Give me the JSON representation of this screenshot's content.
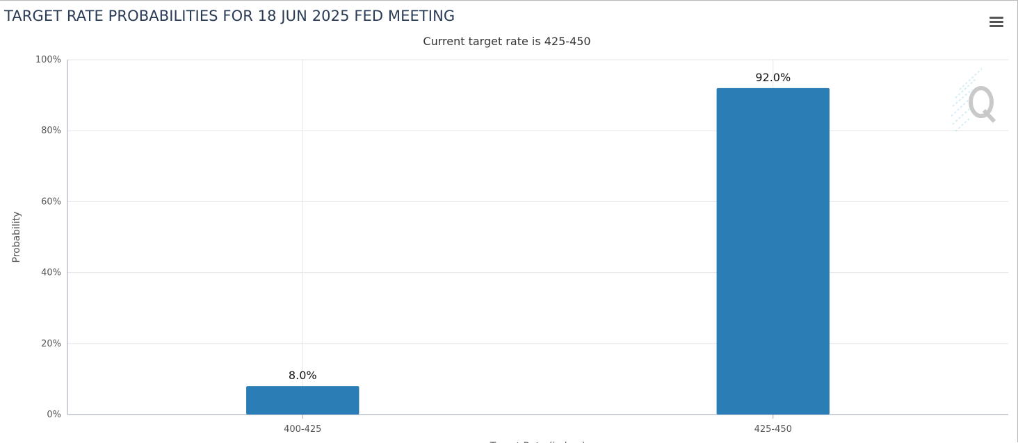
{
  "title": "TARGET RATE PROBABILITIES FOR 18 JUN 2025 FED MEETING",
  "subtitle": "Current target rate is 425-450",
  "menu_icon": "hamburger-menu-icon",
  "watermark_icon": "q-logo-icon",
  "colors": {
    "bar": "#2a7db5",
    "grid": "#e6e6e6",
    "axis": "#9aa3b0",
    "title": "#2a3b55"
  },
  "chart_data": {
    "type": "bar",
    "title": "TARGET RATE PROBABILITIES FOR 18 JUN 2025 FED MEETING",
    "subtitle": "Current target rate is 425-450",
    "categories": [
      "400-425",
      "425-450"
    ],
    "values": [
      8.0,
      92.0
    ],
    "data_labels": [
      "8.0%",
      "92.0%"
    ],
    "ylabel": "Probability",
    "xlabel": "Target Rate (in bps)",
    "ylim": [
      0,
      100
    ],
    "yticks": [
      0,
      20,
      40,
      60,
      80,
      100
    ],
    "ytick_labels": [
      "0%",
      "20%",
      "40%",
      "60%",
      "80%",
      "100%"
    ],
    "grid": true,
    "legend": "none"
  }
}
